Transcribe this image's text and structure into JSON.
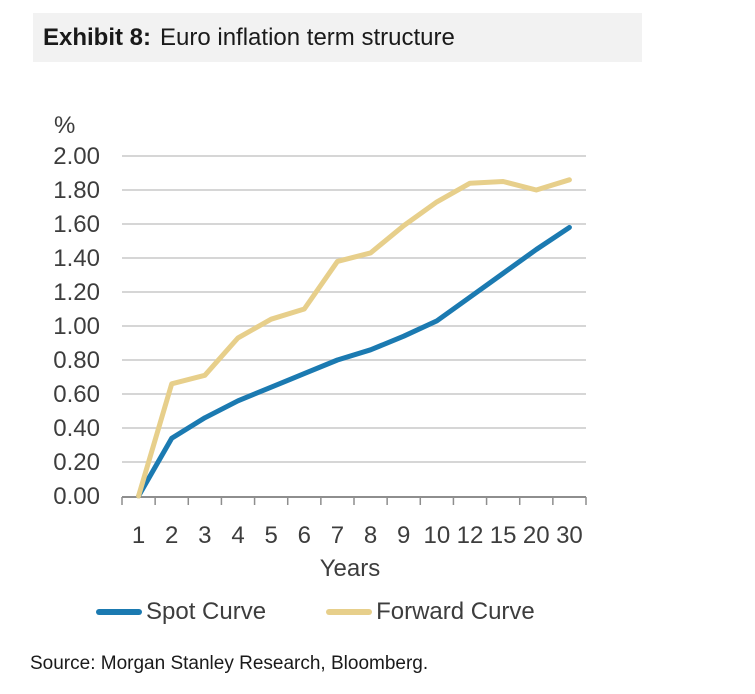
{
  "title": {
    "label": "Exhibit 8:",
    "text": "Euro inflation term structure"
  },
  "source": "Source: Morgan Stanley Research, Bloomberg.",
  "chart_data": {
    "type": "line",
    "title": "Euro inflation term structure",
    "unit_label": "%",
    "xlabel": "Years",
    "categories": [
      "1",
      "2",
      "3",
      "4",
      "5",
      "6",
      "7",
      "8",
      "9",
      "10",
      "12",
      "15",
      "20",
      "30"
    ],
    "y_ticks": [
      "0.00",
      "0.20",
      "0.40",
      "0.60",
      "0.80",
      "1.00",
      "1.20",
      "1.40",
      "1.60",
      "1.80",
      "2.00"
    ],
    "ylim": [
      0,
      2.0
    ],
    "grid": true,
    "legend_position": "bottom",
    "colors": {
      "spot": "#1b7ab1",
      "forward": "#e7cf8b",
      "gridline": "#c8c8c8",
      "axis": "#8e8e8e",
      "tick_text": "#3d3d3d"
    },
    "series": [
      {
        "name": "Spot Curve",
        "color": "#1b7ab1",
        "values": [
          0.0,
          0.34,
          0.46,
          0.56,
          0.64,
          0.72,
          0.8,
          0.86,
          0.94,
          1.03,
          1.17,
          1.31,
          1.45,
          1.58
        ]
      },
      {
        "name": "Forward Curve",
        "color": "#e7cf8b",
        "values": [
          0.0,
          0.66,
          0.71,
          0.93,
          1.04,
          1.1,
          1.38,
          1.43,
          1.59,
          1.73,
          1.84,
          1.85,
          1.8,
          1.86
        ]
      }
    ]
  }
}
